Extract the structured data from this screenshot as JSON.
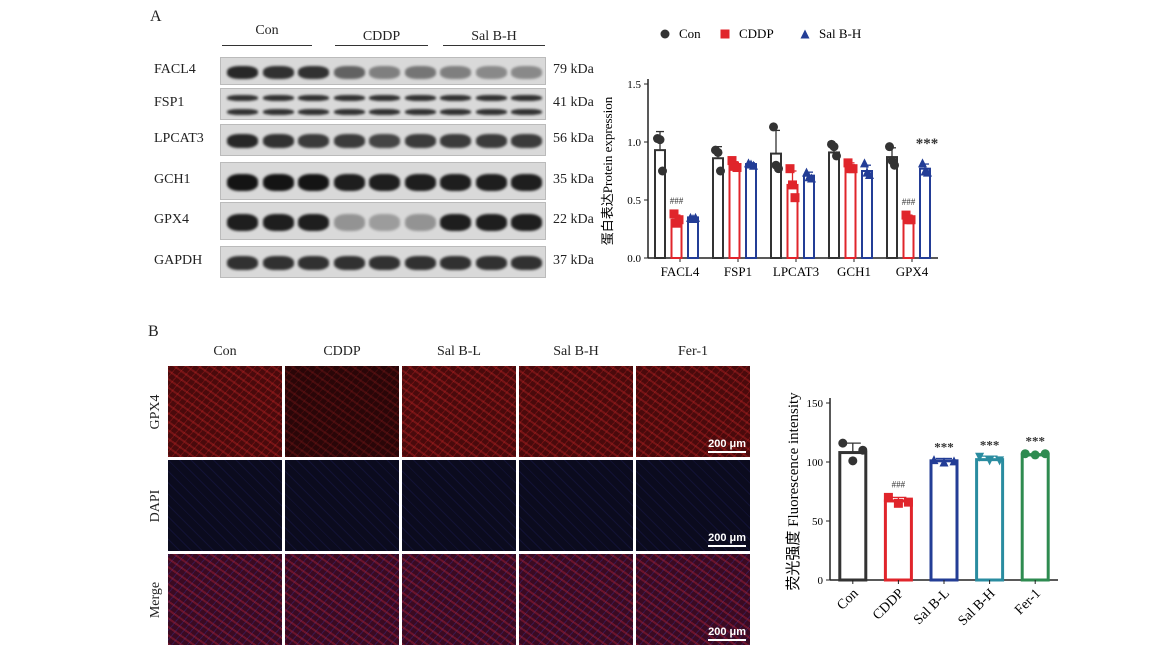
{
  "panel_a": {
    "letter": "A",
    "groups": [
      "Con",
      "CDDP",
      "Sal B-H"
    ],
    "blots": [
      {
        "protein": "FACL4",
        "kda": "79 kDa",
        "intensity": [
          0.9,
          0.85,
          0.85,
          0.6,
          0.45,
          0.5,
          0.45,
          0.4,
          0.4
        ]
      },
      {
        "protein": "FSP1",
        "kda": "41 kDa",
        "intensity": [
          0.85,
          0.85,
          0.85,
          0.85,
          0.85,
          0.85,
          0.85,
          0.85,
          0.85
        ]
      },
      {
        "protein": "LPCAT3",
        "kda": "56 kDa",
        "intensity": [
          0.9,
          0.85,
          0.8,
          0.8,
          0.75,
          0.8,
          0.8,
          0.8,
          0.8
        ]
      },
      {
        "protein": "GCH1",
        "kda": "35 kDa",
        "intensity": [
          1,
          1,
          1,
          0.95,
          0.95,
          0.95,
          0.95,
          0.95,
          0.95
        ]
      },
      {
        "protein": "GPX4",
        "kda": "22 kDa",
        "intensity": [
          0.95,
          0.95,
          0.95,
          0.35,
          0.3,
          0.35,
          0.95,
          0.95,
          0.95
        ]
      },
      {
        "protein": "GAPDH",
        "kda": "37 kDa",
        "intensity": [
          0.85,
          0.85,
          0.85,
          0.85,
          0.85,
          0.85,
          0.85,
          0.85,
          0.85
        ]
      }
    ]
  },
  "panel_b": {
    "letter": "B",
    "columns": [
      "Con",
      "CDDP",
      "Sal B-L",
      "Sal B-H",
      "Fer-1"
    ],
    "rows": [
      "GPX4",
      "DAPI",
      "Merge"
    ],
    "scale_bar": "200 μm"
  },
  "chart_data": [
    {
      "type": "bar",
      "title": "",
      "ylabel": "蛋白表达Protein expression",
      "xlabel": "",
      "ylim": [
        0,
        1.5
      ],
      "yticks": [
        "0.0",
        "0.5",
        "1.0",
        "1.5"
      ],
      "categories": [
        "FACL4",
        "FSP1",
        "LPCAT3",
        "GCH1",
        "GPX4"
      ],
      "legend": {
        "placement": "top",
        "entries": [
          "Con",
          "CDDP",
          "Sal B-H"
        ]
      },
      "series": [
        {
          "name": "Con",
          "color": "#333333",
          "marker": "circle",
          "values": [
            0.93,
            0.86,
            0.9,
            0.91,
            0.87
          ],
          "points": [
            [
              1.03,
              1.02,
              0.75
            ],
            [
              0.93,
              0.91,
              0.75
            ],
            [
              1.13,
              0.8,
              0.77
            ],
            [
              0.98,
              0.96,
              0.88
            ],
            [
              0.96,
              0.84,
              0.8
            ]
          ],
          "err": [
            0.16,
            0.1,
            0.2,
            0.06,
            0.08
          ]
        },
        {
          "name": "CDDP",
          "color": "#e0252b",
          "marker": "square",
          "values": [
            0.33,
            0.8,
            0.63,
            0.79,
            0.34
          ],
          "points": [
            [
              0.38,
              0.3,
              0.33
            ],
            [
              0.84,
              0.79,
              0.78
            ],
            [
              0.77,
              0.63,
              0.52
            ],
            [
              0.82,
              0.77,
              0.77
            ],
            [
              0.37,
              0.33,
              0.33
            ]
          ],
          "err": [
            0.04,
            0.03,
            0.12,
            0.03,
            0.03
          ],
          "annotations": [
            "###",
            "",
            "",
            "",
            "###"
          ]
        },
        {
          "name": "Sal B-H",
          "color": "#233d96",
          "marker": "triangle",
          "values": [
            0.35,
            0.81,
            0.71,
            0.75,
            0.77
          ],
          "points": [
            [
              0.35,
              0.34,
              0.35
            ],
            [
              0.82,
              0.81,
              0.8
            ],
            [
              0.74,
              0.7,
              0.69
            ],
            [
              0.82,
              0.74,
              0.72
            ],
            [
              0.82,
              0.75,
              0.74
            ]
          ],
          "err": [
            0.01,
            0.01,
            0.03,
            0.05,
            0.04
          ],
          "annotations": [
            "",
            "",
            "",
            "",
            "***"
          ]
        }
      ]
    },
    {
      "type": "bar",
      "title": "",
      "ylabel": "荧光强度 Fluorescence intensity",
      "xlabel": "",
      "ylim": [
        0,
        150
      ],
      "yticks": [
        "0",
        "50",
        "100",
        "150"
      ],
      "categories": [
        "Con",
        "CDDP",
        "Sal B-L",
        "Sal B-H",
        "Fer-1"
      ],
      "values": [
        108,
        67,
        101,
        102,
        106
      ],
      "colors": [
        "#333333",
        "#e0252b",
        "#233d96",
        "#2a8ca0",
        "#2e8b50"
      ],
      "markers": [
        "circle",
        "square",
        "triangle",
        "triangle-down",
        "circle"
      ],
      "points": [
        [
          116,
          101,
          110
        ],
        [
          70,
          65,
          66
        ],
        [
          102,
          100,
          101
        ],
        [
          104,
          101,
          101
        ],
        [
          107,
          106,
          107
        ]
      ],
      "err": [
        8,
        3,
        2,
        3,
        1
      ],
      "annotations": [
        "",
        "###",
        "***",
        "***",
        "***"
      ]
    }
  ]
}
